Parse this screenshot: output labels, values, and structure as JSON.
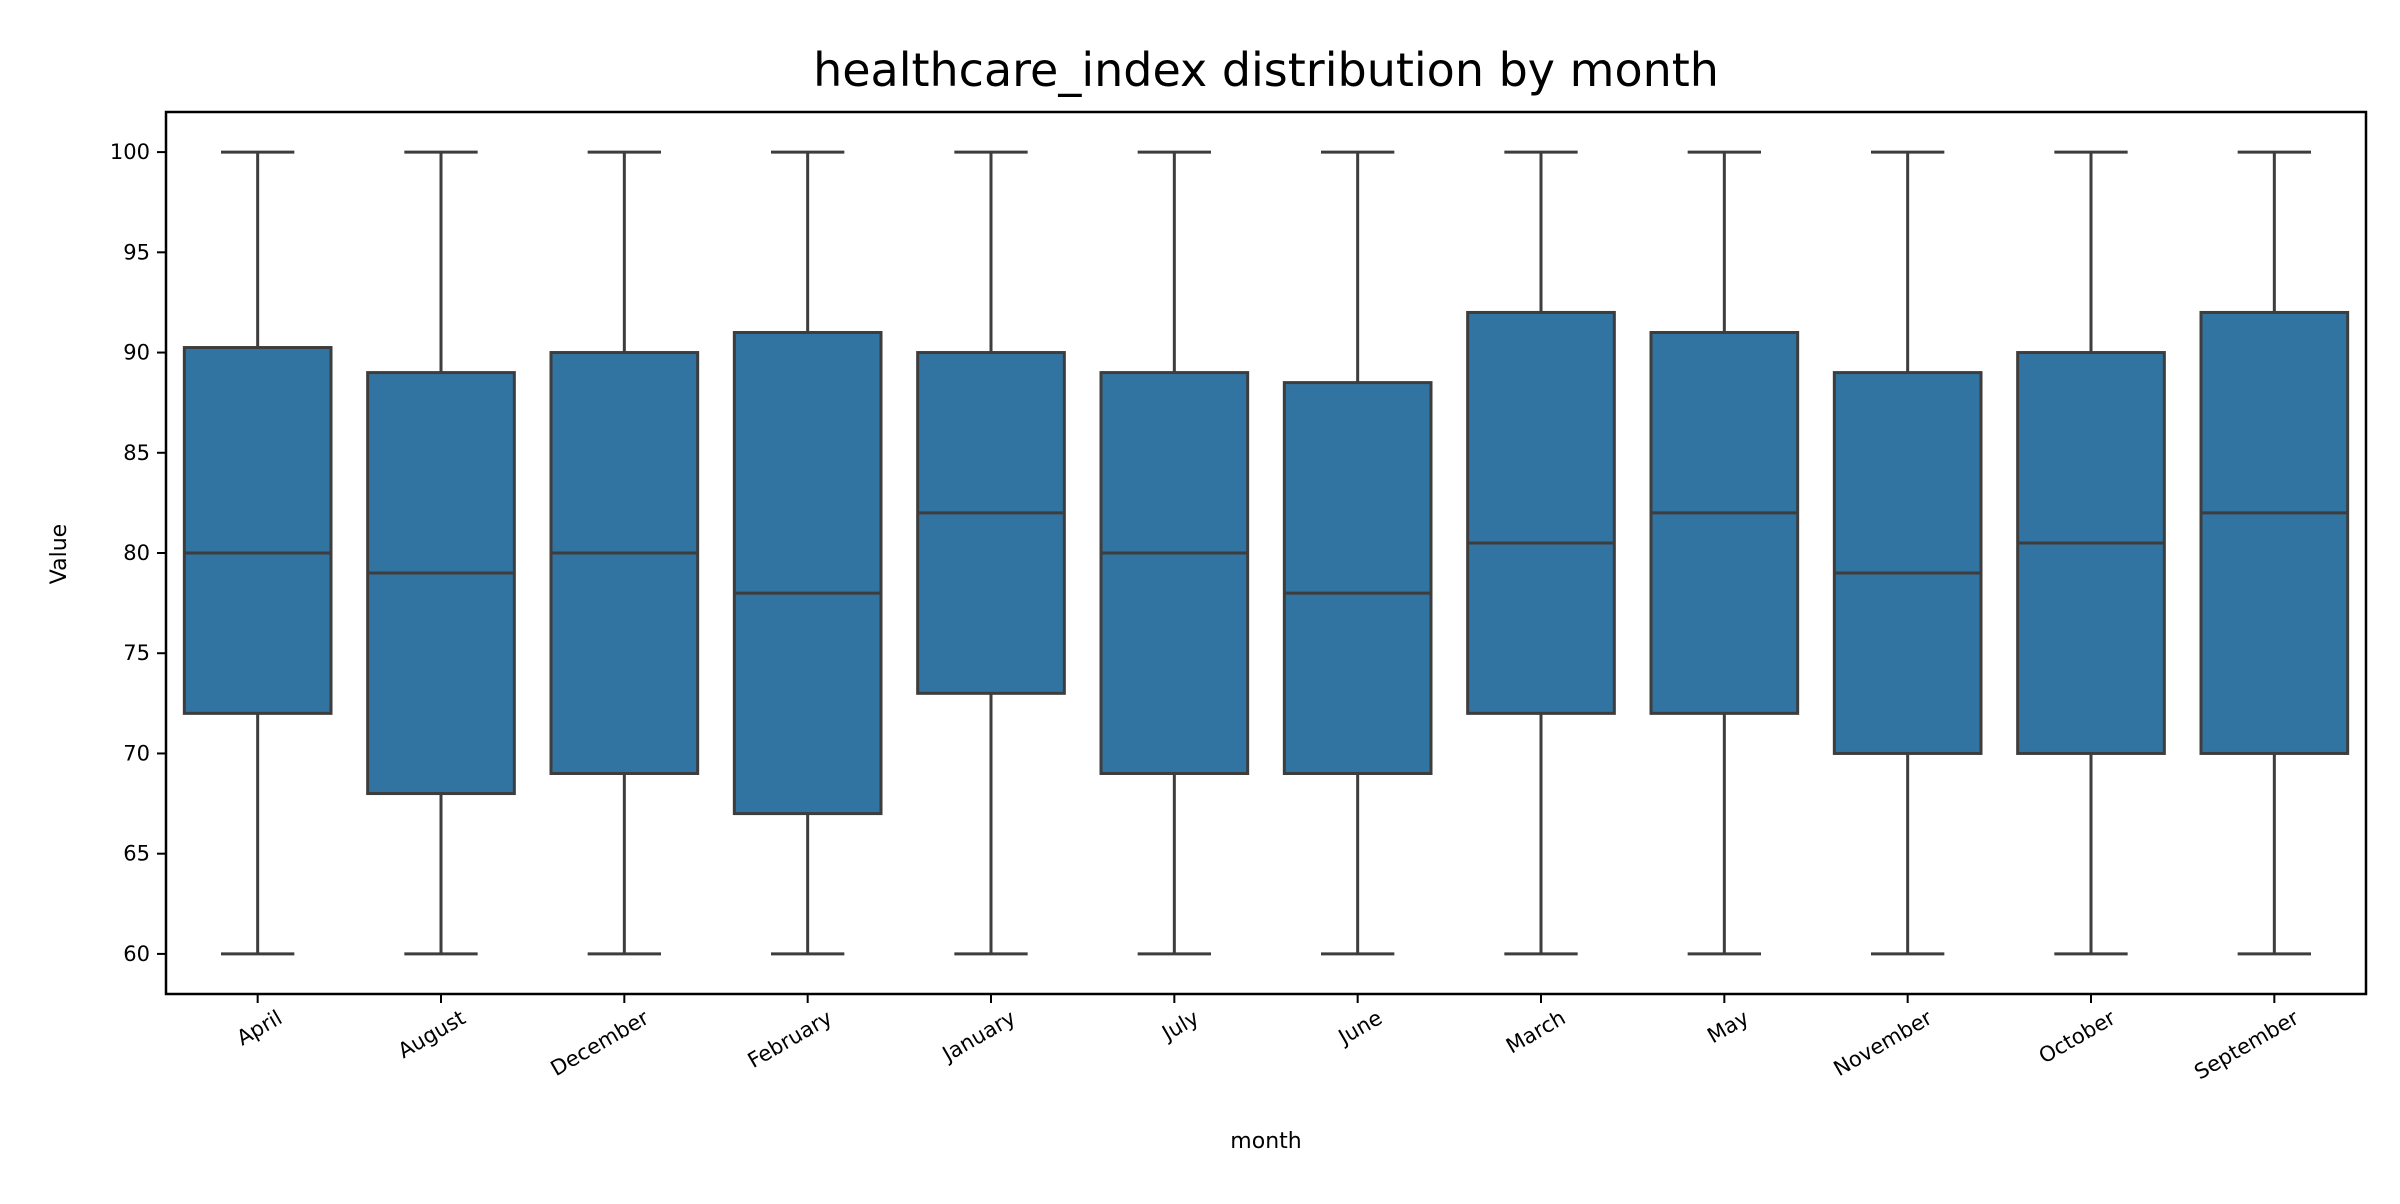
{
  "chart_data": {
    "type": "box",
    "title": "healthcare_index distribution by month",
    "xlabel": "month",
    "ylabel": "Value",
    "ylim": [
      58,
      102
    ],
    "yticks": [
      60,
      65,
      70,
      75,
      80,
      85,
      90,
      95,
      100
    ],
    "grid": false,
    "legend": "none",
    "colors": {
      "box_fill": "#3274a1",
      "line": "#3d3d3d"
    },
    "categories": [
      "April",
      "August",
      "December",
      "February",
      "January",
      "July",
      "June",
      "March",
      "May",
      "November",
      "October",
      "September"
    ],
    "boxes": [
      {
        "min": 60,
        "q1": 72,
        "median": 80,
        "q3": 90.25,
        "max": 100
      },
      {
        "min": 60,
        "q1": 68,
        "median": 79,
        "q3": 89,
        "max": 100
      },
      {
        "min": 60,
        "q1": 69,
        "median": 80,
        "q3": 90,
        "max": 100
      },
      {
        "min": 60,
        "q1": 67,
        "median": 78,
        "q3": 91,
        "max": 100
      },
      {
        "min": 60,
        "q1": 73,
        "median": 82,
        "q3": 90,
        "max": 100
      },
      {
        "min": 60,
        "q1": 69,
        "median": 80,
        "q3": 89,
        "max": 100
      },
      {
        "min": 60,
        "q1": 69,
        "median": 78,
        "q3": 88.5,
        "max": 100
      },
      {
        "min": 60,
        "q1": 72,
        "median": 80.5,
        "q3": 92,
        "max": 100
      },
      {
        "min": 60,
        "q1": 72,
        "median": 82,
        "q3": 91,
        "max": 100
      },
      {
        "min": 60,
        "q1": 70,
        "median": 79,
        "q3": 89,
        "max": 100
      },
      {
        "min": 60,
        "q1": 70,
        "median": 80.5,
        "q3": 90,
        "max": 100
      },
      {
        "min": 60,
        "q1": 70,
        "median": 82,
        "q3": 92,
        "max": 100
      }
    ]
  }
}
